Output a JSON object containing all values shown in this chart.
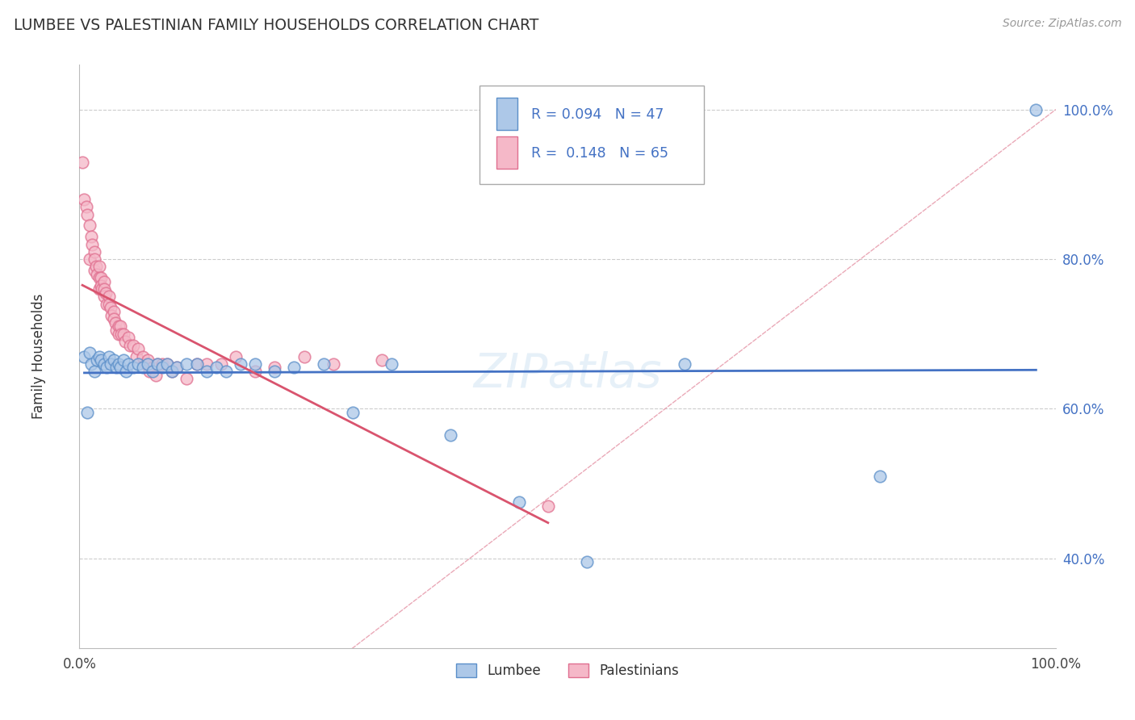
{
  "title": "LUMBEE VS PALESTINIAN FAMILY HOUSEHOLDS CORRELATION CHART",
  "source": "Source: ZipAtlas.com",
  "ylabel_text": "Family Households",
  "xlim": [
    0,
    1
  ],
  "ylim": [
    0.28,
    1.06
  ],
  "yticks": [
    0.4,
    0.6,
    0.8,
    1.0
  ],
  "ytick_labels": [
    "40.0%",
    "60.0%",
    "80.0%",
    "100.0%"
  ],
  "lumbee_R": 0.094,
  "lumbee_N": 47,
  "palestinian_R": 0.148,
  "palestinian_N": 65,
  "lumbee_color": "#adc8e8",
  "lumbee_edge_color": "#5b8fc9",
  "lumbee_line_color": "#4472c4",
  "palestinian_color": "#f5b8c8",
  "palestinian_edge_color": "#e07090",
  "palestinian_line_color": "#d9546e",
  "diagonal_color": "#e8a0b0",
  "legend_label_lumbee": "Lumbee",
  "legend_label_palestinian": "Palestinians",
  "background_color": "#ffffff",
  "lumbee_x": [
    0.005,
    0.008,
    0.01,
    0.012,
    0.015,
    0.018,
    0.02,
    0.022,
    0.025,
    0.028,
    0.03,
    0.032,
    0.035,
    0.038,
    0.04,
    0.042,
    0.045,
    0.048,
    0.05,
    0.055,
    0.06,
    0.065,
    0.07,
    0.075,
    0.08,
    0.085,
    0.09,
    0.095,
    0.1,
    0.11,
    0.12,
    0.13,
    0.14,
    0.15,
    0.165,
    0.18,
    0.2,
    0.22,
    0.25,
    0.28,
    0.32,
    0.38,
    0.45,
    0.52,
    0.62,
    0.82,
    0.98
  ],
  "lumbee_y": [
    0.67,
    0.595,
    0.675,
    0.66,
    0.65,
    0.665,
    0.67,
    0.665,
    0.66,
    0.655,
    0.67,
    0.66,
    0.665,
    0.655,
    0.66,
    0.655,
    0.665,
    0.65,
    0.66,
    0.655,
    0.66,
    0.655,
    0.66,
    0.65,
    0.66,
    0.655,
    0.66,
    0.65,
    0.655,
    0.66,
    0.66,
    0.65,
    0.655,
    0.65,
    0.66,
    0.66,
    0.65,
    0.655,
    0.66,
    0.595,
    0.66,
    0.565,
    0.475,
    0.395,
    0.66,
    0.51,
    1.0
  ],
  "palestinian_x": [
    0.003,
    0.005,
    0.007,
    0.008,
    0.01,
    0.01,
    0.012,
    0.013,
    0.015,
    0.015,
    0.015,
    0.017,
    0.018,
    0.02,
    0.02,
    0.02,
    0.022,
    0.022,
    0.023,
    0.025,
    0.025,
    0.025,
    0.027,
    0.028,
    0.03,
    0.03,
    0.032,
    0.033,
    0.035,
    0.035,
    0.037,
    0.038,
    0.04,
    0.04,
    0.042,
    0.043,
    0.045,
    0.047,
    0.05,
    0.052,
    0.055,
    0.058,
    0.06,
    0.065,
    0.068,
    0.07,
    0.072,
    0.075,
    0.078,
    0.08,
    0.085,
    0.09,
    0.095,
    0.1,
    0.11,
    0.12,
    0.13,
    0.145,
    0.16,
    0.18,
    0.2,
    0.23,
    0.26,
    0.31,
    0.48
  ],
  "palestinian_y": [
    0.93,
    0.88,
    0.87,
    0.86,
    0.845,
    0.8,
    0.83,
    0.82,
    0.81,
    0.8,
    0.785,
    0.79,
    0.78,
    0.79,
    0.775,
    0.76,
    0.775,
    0.765,
    0.76,
    0.77,
    0.76,
    0.75,
    0.755,
    0.74,
    0.75,
    0.74,
    0.735,
    0.725,
    0.73,
    0.72,
    0.715,
    0.705,
    0.71,
    0.7,
    0.71,
    0.7,
    0.7,
    0.69,
    0.695,
    0.685,
    0.685,
    0.67,
    0.68,
    0.67,
    0.66,
    0.665,
    0.65,
    0.655,
    0.645,
    0.66,
    0.66,
    0.66,
    0.65,
    0.655,
    0.64,
    0.66,
    0.66,
    0.66,
    0.67,
    0.65,
    0.655,
    0.67,
    0.66,
    0.665,
    0.47
  ]
}
